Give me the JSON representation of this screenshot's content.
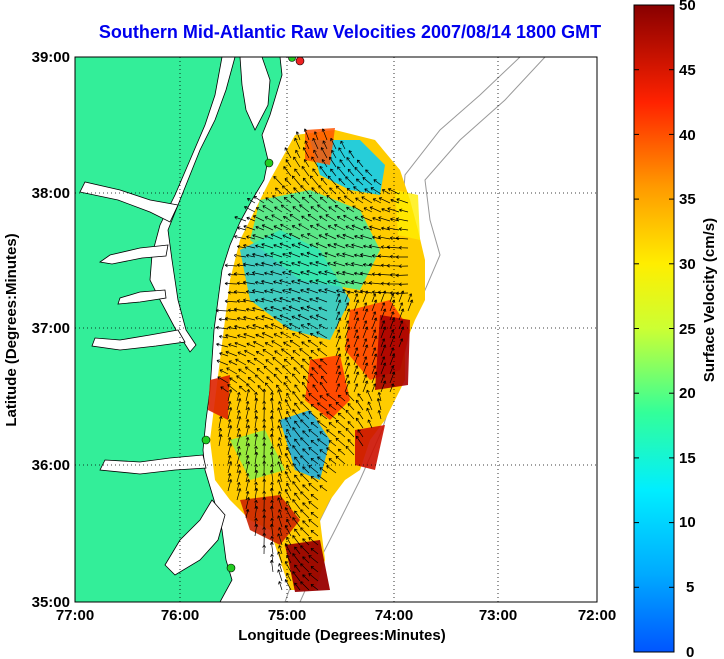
{
  "title": "Southern Mid-Atlantic Raw Velocities 2007/08/14 1800 GMT",
  "axes": {
    "xlabel": "Longitude (Degrees:Minutes)",
    "ylabel": "Latitude (Degrees:Minutes)",
    "x_ticks": [
      "77:00",
      "76:00",
      "75:00",
      "74:00",
      "73:00",
      "72:00"
    ],
    "y_ticks": [
      "39:00",
      "38:00",
      "37:00",
      "36:00",
      "35:00"
    ]
  },
  "colorbar": {
    "label": "Surface Velocity (cm/s)",
    "ticks": [
      "50",
      "45",
      "40",
      "35",
      "30",
      "25",
      "20",
      "15",
      "10",
      "5",
      "0"
    ],
    "min": 0,
    "max": 50
  },
  "colors": {
    "land": "#33ee99",
    "water": "#ffffff",
    "title": "#0000ee",
    "station": "#22cc22",
    "station_alt": "#ee2222"
  },
  "icons": {
    "station": "circle-marker"
  }
}
